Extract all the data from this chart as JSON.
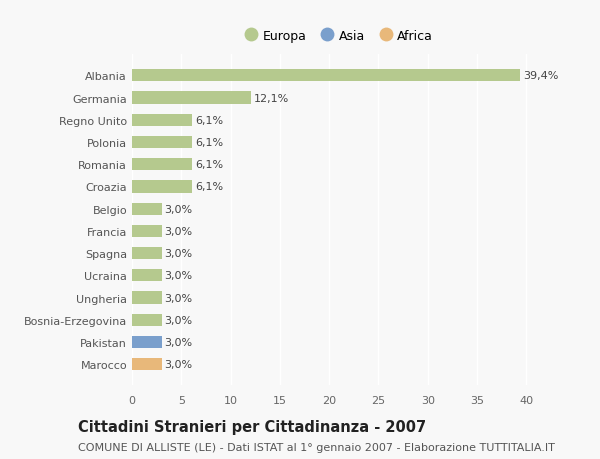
{
  "countries": [
    "Albania",
    "Germania",
    "Regno Unito",
    "Polonia",
    "Romania",
    "Croazia",
    "Belgio",
    "Francia",
    "Spagna",
    "Ucraina",
    "Ungheria",
    "Bosnia-Erzegovina",
    "Pakistan",
    "Marocco"
  ],
  "values": [
    39.4,
    12.1,
    6.1,
    6.1,
    6.1,
    6.1,
    3.0,
    3.0,
    3.0,
    3.0,
    3.0,
    3.0,
    3.0,
    3.0
  ],
  "labels": [
    "39,4%",
    "12,1%",
    "6,1%",
    "6,1%",
    "6,1%",
    "6,1%",
    "3,0%",
    "3,0%",
    "3,0%",
    "3,0%",
    "3,0%",
    "3,0%",
    "3,0%",
    "3,0%"
  ],
  "continent": [
    "Europa",
    "Europa",
    "Europa",
    "Europa",
    "Europa",
    "Europa",
    "Europa",
    "Europa",
    "Europa",
    "Europa",
    "Europa",
    "Europa",
    "Asia",
    "Africa"
  ],
  "colors": {
    "Europa": "#b5c98e",
    "Asia": "#7a9fcc",
    "Africa": "#e8b87a"
  },
  "legend_items": [
    {
      "label": "Europa",
      "color": "#b5c98e"
    },
    {
      "label": "Asia",
      "color": "#7a9fcc"
    },
    {
      "label": "Africa",
      "color": "#e8b87a"
    }
  ],
  "xlim": [
    0,
    42
  ],
  "xticks": [
    0,
    5,
    10,
    15,
    20,
    25,
    30,
    35,
    40
  ],
  "title": "Cittadini Stranieri per Cittadinanza - 2007",
  "subtitle": "COMUNE DI ALLISTE (LE) - Dati ISTAT al 1° gennaio 2007 - Elaborazione TUTTITALIA.IT",
  "background_color": "#f8f8f8",
  "bar_height": 0.55,
  "title_fontsize": 10.5,
  "subtitle_fontsize": 8,
  "label_fontsize": 8,
  "tick_fontsize": 8,
  "legend_fontsize": 9
}
